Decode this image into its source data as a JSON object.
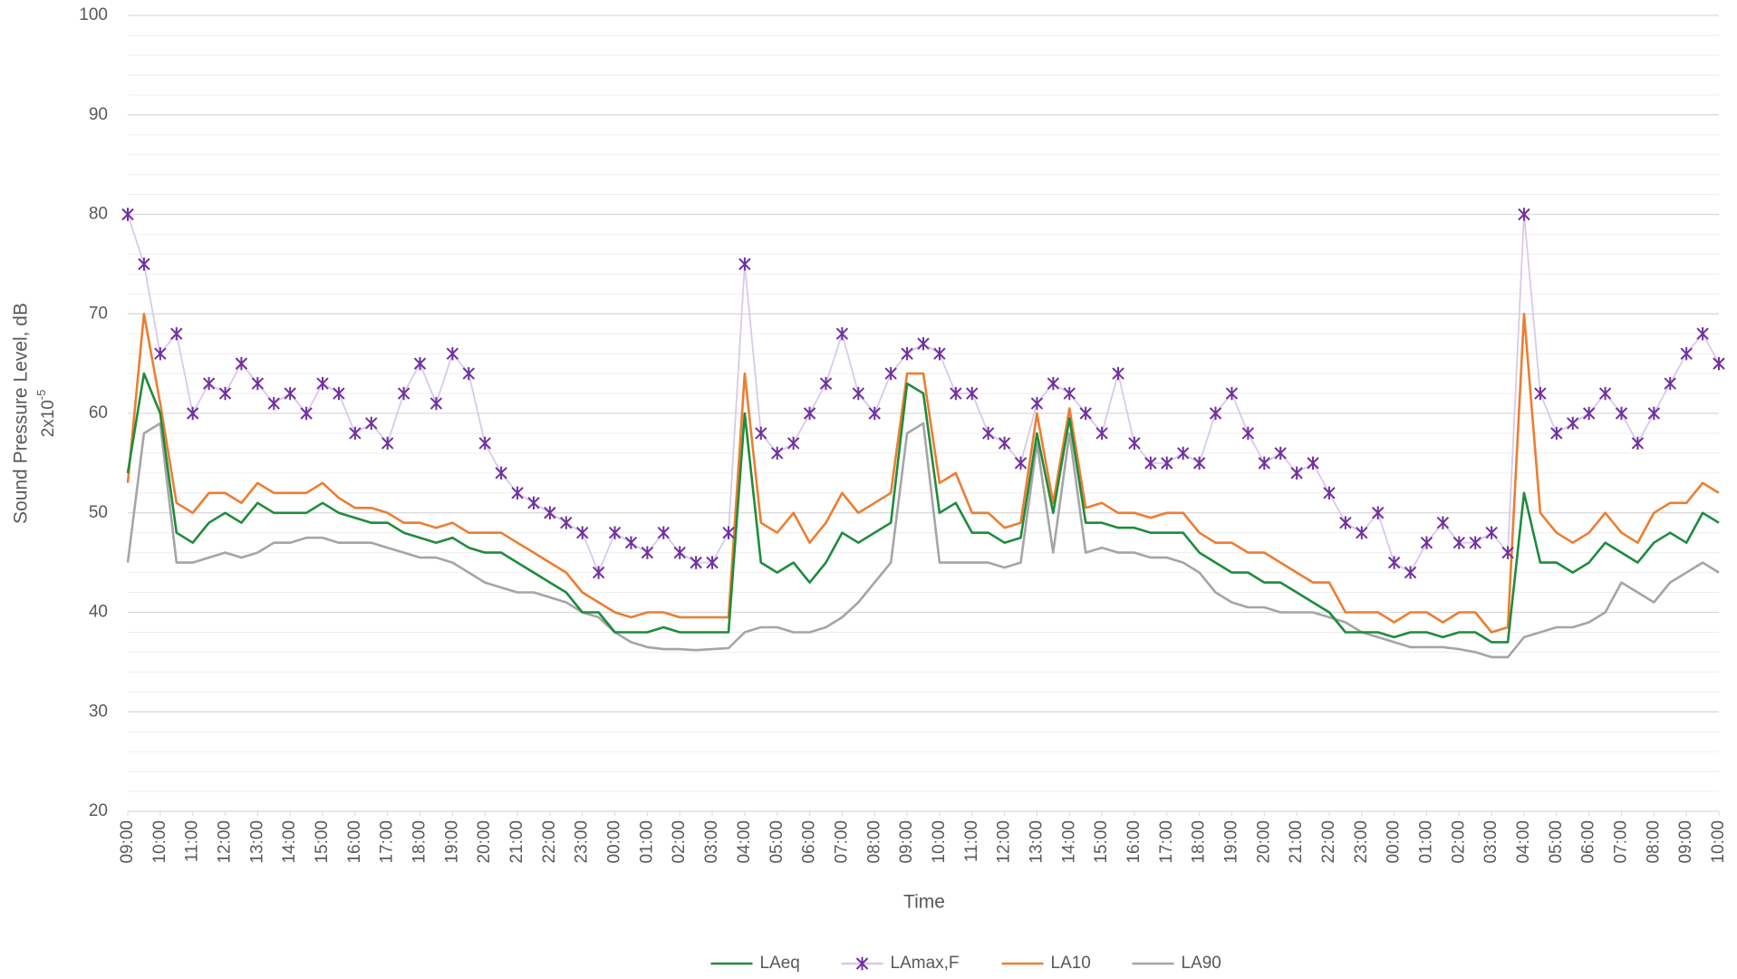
{
  "chart_data": {
    "type": "line",
    "xlabel": "Time",
    "ylabel": "Sound Pressure Level, dB",
    "ylabel_unit": {
      "base": "2x10",
      "exponent": "-5"
    },
    "xlim": [
      0,
      49
    ],
    "ylim": [
      20,
      100
    ],
    "yticks": [
      20,
      30,
      40,
      50,
      60,
      70,
      80,
      90,
      100
    ],
    "yminor_step": 2,
    "grid": true,
    "legend": "bottom",
    "xticks": [
      {
        "value": 0,
        "label": "09:00"
      },
      {
        "value": 1,
        "label": "10:00"
      },
      {
        "value": 2,
        "label": "11:00"
      },
      {
        "value": 3,
        "label": "12:00"
      },
      {
        "value": 4,
        "label": "13:00"
      },
      {
        "value": 5,
        "label": "14:00"
      },
      {
        "value": 6,
        "label": "15:00"
      },
      {
        "value": 7,
        "label": "16:00"
      },
      {
        "value": 8,
        "label": "17:00"
      },
      {
        "value": 9,
        "label": "18:00"
      },
      {
        "value": 10,
        "label": "19:00"
      },
      {
        "value": 11,
        "label": "20:00"
      },
      {
        "value": 12,
        "label": "21:00"
      },
      {
        "value": 13,
        "label": "22:00"
      },
      {
        "value": 14,
        "label": "23:00"
      },
      {
        "value": 15,
        "label": "00:00"
      },
      {
        "value": 16,
        "label": "01:00"
      },
      {
        "value": 17,
        "label": "02:00"
      },
      {
        "value": 18,
        "label": "03:00"
      },
      {
        "value": 19,
        "label": "04:00"
      },
      {
        "value": 20,
        "label": "05:00"
      },
      {
        "value": 21,
        "label": "06:00"
      },
      {
        "value": 22,
        "label": "07:00"
      },
      {
        "value": 23,
        "label": "08:00"
      },
      {
        "value": 24,
        "label": "09:00"
      },
      {
        "value": 25,
        "label": "10:00"
      },
      {
        "value": 26,
        "label": "11:00"
      },
      {
        "value": 27,
        "label": "12:00"
      },
      {
        "value": 28,
        "label": "13:00"
      },
      {
        "value": 29,
        "label": "14:00"
      },
      {
        "value": 30,
        "label": "15:00"
      },
      {
        "value": 31,
        "label": "16:00"
      },
      {
        "value": 32,
        "label": "17:00"
      },
      {
        "value": 33,
        "label": "18:00"
      },
      {
        "value": 34,
        "label": "19:00"
      },
      {
        "value": 35,
        "label": "20:00"
      },
      {
        "value": 36,
        "label": "21:00"
      },
      {
        "value": 37,
        "label": "22:00"
      },
      {
        "value": 38,
        "label": "23:00"
      },
      {
        "value": 39,
        "label": "00:00"
      },
      {
        "value": 40,
        "label": "01:00"
      },
      {
        "value": 41,
        "label": "02:00"
      },
      {
        "value": 42,
        "label": "03:00"
      },
      {
        "value": 43,
        "label": "04:00"
      },
      {
        "value": 44,
        "label": "05:00"
      },
      {
        "value": 45,
        "label": "06:00"
      },
      {
        "value": 46,
        "label": "07:00"
      },
      {
        "value": 47,
        "label": "08:00"
      },
      {
        "value": 48,
        "label": "09:00"
      },
      {
        "value": 49,
        "label": "10:00"
      }
    ],
    "x": [
      0,
      0.5,
      1,
      1.5,
      2,
      2.5,
      3,
      3.5,
      4,
      4.5,
      5,
      5.5,
      6,
      6.5,
      7,
      7.5,
      8,
      8.5,
      9,
      9.5,
      10,
      10.5,
      11,
      11.5,
      12,
      12.5,
      13,
      13.5,
      14,
      14.5,
      15,
      15.5,
      16,
      16.5,
      17,
      17.5,
      18,
      18.5,
      19,
      19.5,
      20,
      20.5,
      21,
      21.5,
      22,
      22.5,
      23,
      23.5,
      24,
      24.5,
      25,
      25.5,
      26,
      26.5,
      27,
      27.5,
      28,
      28.5,
      29,
      29.5,
      30,
      30.5,
      31,
      31.5,
      32,
      32.5,
      33,
      33.5,
      34,
      34.5,
      35,
      35.5,
      36,
      36.5,
      37,
      37.5,
      38,
      38.5,
      39,
      39.5,
      40,
      40.5,
      41,
      41.5,
      42,
      42.5,
      43,
      43.5,
      44,
      44.5,
      45,
      45.5,
      46,
      46.5,
      47,
      47.5,
      48,
      48.5,
      49
    ],
    "series": [
      {
        "name": "LAeq",
        "color": "#1e8c3c",
        "marker": "none",
        "values": [
          54,
          64,
          60,
          48,
          47,
          49,
          50,
          49,
          51,
          50,
          50,
          50,
          51,
          50,
          49.5,
          49,
          49,
          48,
          47.5,
          47,
          47.5,
          46.5,
          46,
          46,
          45,
          44,
          43,
          42,
          40,
          40,
          38,
          38,
          38,
          38.5,
          38,
          38,
          38,
          38,
          60,
          45,
          44,
          45,
          43,
          45,
          48,
          47,
          48,
          49,
          63,
          62,
          50,
          51,
          48,
          48,
          47,
          47.5,
          58,
          50,
          59.5,
          49,
          49,
          48.5,
          48.5,
          48,
          48,
          48,
          46,
          45,
          44,
          44,
          43,
          43,
          42,
          41,
          40,
          38,
          38,
          38,
          37.5,
          38,
          38,
          37.5,
          38,
          38,
          37,
          37,
          52,
          45,
          45,
          44,
          45,
          47,
          46,
          45,
          47,
          48,
          47,
          50,
          49
        ]
      },
      {
        "name": "LAmax,F",
        "color": "#7030a0",
        "line_color": "#d9c9ec",
        "marker": "asterisk",
        "values": [
          80,
          75,
          66,
          68,
          60,
          63,
          62,
          65,
          63,
          61,
          62,
          60,
          63,
          62,
          58,
          59,
          57,
          62,
          65,
          61,
          66,
          64,
          57,
          54,
          52,
          51,
          50,
          49,
          48,
          44,
          48,
          47,
          46,
          48,
          46,
          45,
          45,
          48,
          75,
          58,
          56,
          57,
          60,
          63,
          68,
          62,
          60,
          64,
          66,
          67,
          66,
          62,
          62,
          58,
          57,
          55,
          61,
          63,
          62,
          60,
          58,
          64,
          57,
          55,
          55,
          56,
          55,
          60,
          62,
          58,
          55,
          56,
          54,
          55,
          52,
          49,
          48,
          50,
          45,
          44,
          47,
          49,
          47,
          47,
          48,
          46,
          80,
          62,
          58,
          59,
          60,
          62,
          60,
          57,
          60,
          63,
          66,
          68,
          65
        ]
      },
      {
        "name": "LA10",
        "color": "#ed7d31",
        "marker": "none",
        "values": [
          53,
          70,
          61,
          51,
          50,
          52,
          52,
          51,
          53,
          52,
          52,
          52,
          53,
          51.5,
          50.5,
          50.5,
          50,
          49,
          49,
          48.5,
          49,
          48,
          48,
          48,
          47,
          46,
          45,
          44,
          42,
          41,
          40,
          39.5,
          40,
          40,
          39.5,
          39.5,
          39.5,
          39.5,
          64,
          49,
          48,
          50,
          47,
          49,
          52,
          50,
          51,
          52,
          64,
          64,
          53,
          54,
          50,
          50,
          48.5,
          49,
          60,
          51,
          60.5,
          50.5,
          51,
          50,
          50,
          49.5,
          50,
          50,
          48,
          47,
          47,
          46,
          46,
          45,
          44,
          43,
          43,
          40,
          40,
          40,
          39,
          40,
          40,
          39,
          40,
          40,
          38,
          38.5,
          70,
          50,
          48,
          47,
          48,
          50,
          48,
          47,
          50,
          51,
          51,
          53,
          52
        ]
      },
      {
        "name": "LA90",
        "color": "#a5a5a5",
        "marker": "none",
        "values": [
          45,
          58,
          59,
          45,
          45,
          45.5,
          46,
          45.5,
          46,
          47,
          47,
          47.5,
          47.5,
          47,
          47,
          47,
          46.5,
          46,
          45.5,
          45.5,
          45,
          44,
          43,
          42.5,
          42,
          42,
          41.5,
          41,
          40,
          39.5,
          38,
          37,
          36.5,
          36.3,
          36.3,
          36.2,
          36.3,
          36.4,
          38,
          38.5,
          38.5,
          38,
          38,
          38.5,
          39.5,
          41,
          43,
          45,
          58,
          59,
          45,
          45,
          45,
          45,
          44.5,
          45,
          57,
          46,
          58,
          46,
          46.5,
          46,
          46,
          45.5,
          45.5,
          45,
          44,
          42,
          41,
          40.5,
          40.5,
          40,
          40,
          40,
          39.5,
          39,
          38,
          37.5,
          37,
          36.5,
          36.5,
          36.5,
          36.3,
          36,
          35.5,
          35.5,
          37.5,
          38,
          38.5,
          38.5,
          39,
          40,
          43,
          42,
          41,
          43,
          44,
          45,
          44
        ]
      }
    ]
  }
}
